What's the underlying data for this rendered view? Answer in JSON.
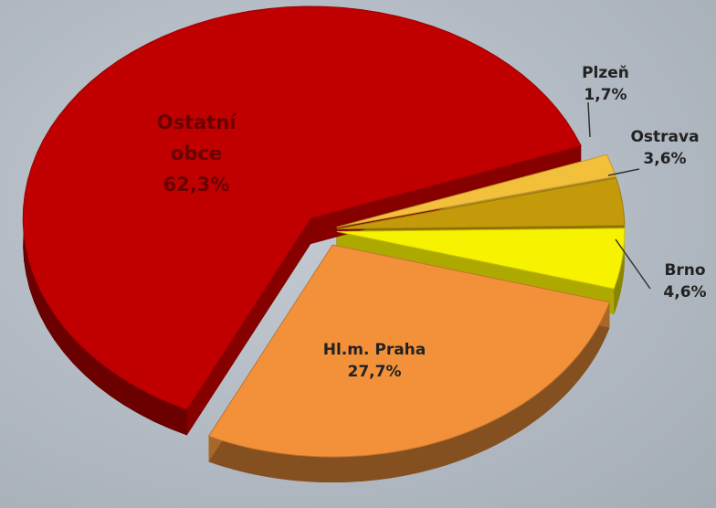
{
  "chart_data": {
    "type": "pie",
    "categories": [
      "Plzeň",
      "Ostrava",
      "Brno",
      "Hl.m. Praha",
      "Ostatní obce"
    ],
    "values": [
      1.7,
      3.6,
      4.6,
      27.7,
      62.3
    ],
    "value_labels": [
      "1,7%",
      "3,6%",
      "4,6%",
      "27,7%",
      "62,3%"
    ],
    "colors": [
      "#f2c03a",
      "#c49a0a",
      "#f7f200",
      "#f2913a",
      "#c00000"
    ]
  }
}
